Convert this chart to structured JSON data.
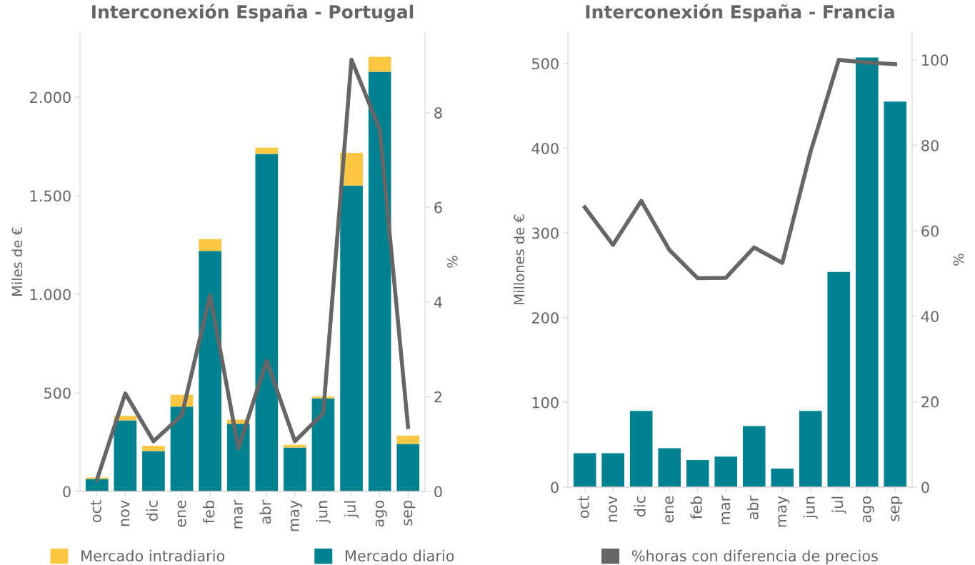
{
  "chart_data": [
    {
      "type": "bar",
      "title": "Interconexión España - Portugal",
      "ylabel": "Miles de €",
      "y2label": "%",
      "stacked": true,
      "legend": "bottom",
      "categories": [
        "oct",
        "nov",
        "dic",
        "ene",
        "feb",
        "mar",
        "abr",
        "may",
        "jun",
        "jul",
        "ago",
        "sep"
      ],
      "series": [
        {
          "name": "Mercado diario",
          "color": "#008290",
          "values": [
            63,
            361,
            205,
            430,
            1220,
            343,
            1712,
            223,
            472,
            1552,
            2129,
            241
          ]
        },
        {
          "name": "Mercado intradiario",
          "color": "#fcc844",
          "values": [
            8,
            22,
            26,
            60,
            60,
            21,
            32,
            13,
            9,
            166,
            76,
            42
          ]
        },
        {
          "type": "line",
          "axis": "y2",
          "color": "#666666",
          "values": [
            0.25,
            2.07,
            1.06,
            1.61,
            4.14,
            0.91,
            2.76,
            1.06,
            1.65,
            9.12,
            7.64,
            1.36
          ]
        }
      ],
      "ylim": [
        0,
        2330
      ],
      "yticks": [
        0,
        500,
        {
          "value": 1000,
          "label": "1.000"
        },
        {
          "value": 1500,
          "label": "1.500"
        },
        {
          "value": 2000,
          "label": "2.000"
        }
      ],
      "y2lim": [
        0,
        9.7
      ],
      "y2ticks": [
        0,
        2,
        4,
        6,
        8
      ]
    },
    {
      "type": "bar",
      "title": "Interconexión España - Francia",
      "ylabel": "Millones de €",
      "y2label": "%",
      "legend": "bottom",
      "categories": [
        "oct",
        "nov",
        "dic",
        "ene",
        "feb",
        "mar",
        "abr",
        "may",
        "jun",
        "jul",
        "ago",
        "sep"
      ],
      "series": [
        {
          "color": "#008290",
          "values": [
            40,
            40,
            90,
            46,
            32,
            36,
            72,
            22,
            90,
            254,
            507,
            455
          ]
        },
        {
          "type": "line",
          "axis": "y2",
          "name": "%horas con diferencia de precios",
          "color": "#666666",
          "values": [
            65.5,
            56.7,
            67,
            55.5,
            48.9,
            49,
            56.1,
            52.5,
            78.5,
            100,
            99.4,
            99
          ]
        }
      ],
      "ylim": [
        0,
        537
      ],
      "yticks": [
        0,
        100,
        200,
        300,
        400,
        500
      ],
      "y2lim": [
        0,
        106.5
      ],
      "y2ticks": [
        0,
        20,
        40,
        60,
        80,
        100
      ]
    }
  ]
}
